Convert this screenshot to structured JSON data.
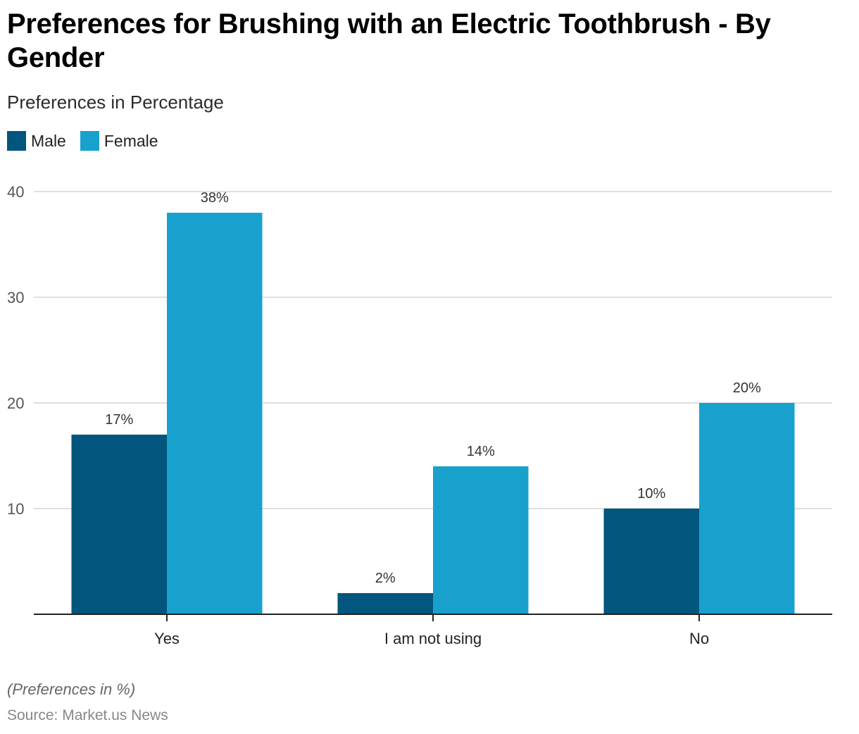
{
  "chart_data": {
    "type": "bar",
    "title": "Preferences for Brushing with an Electric Toothbrush - By Gender",
    "subtitle": "Preferences in Percentage",
    "categories": [
      "Yes",
      "I am not using",
      "No"
    ],
    "series": [
      {
        "name": "Male",
        "color": "#02557c",
        "values": [
          17,
          2,
          10
        ],
        "labels": [
          "17%",
          "2%",
          "10%"
        ]
      },
      {
        "name": "Female",
        "color": "#19a1ce",
        "values": [
          38,
          14,
          20
        ],
        "labels": [
          "38%",
          "14%",
          "20%"
        ]
      }
    ],
    "xlabel": "",
    "ylabel": "",
    "ylim": [
      0,
      40
    ],
    "yticks": [
      10,
      20,
      30,
      40
    ],
    "grid": true,
    "legend_position": "top-left",
    "note": "(Preferences in %)",
    "source": "Source: Market.us News"
  }
}
